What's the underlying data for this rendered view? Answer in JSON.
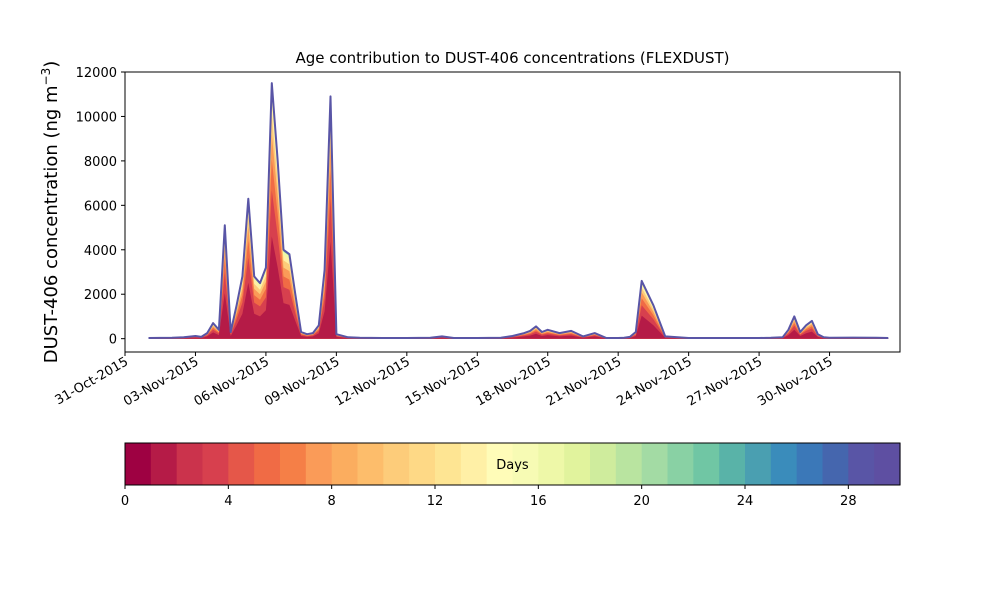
{
  "chart_data": {
    "type": "area",
    "title": "Age contribution to DUST-406 concentrations (FLEXDUST)",
    "ylabel": "DUST-406 concentration (ng m",
    "ylabel_unit_sup": "−3",
    "ylabel_close": ")",
    "xlabel": "",
    "x_range": [
      "2015-10-31",
      "2015-12-03"
    ],
    "ylim": [
      -600,
      12000
    ],
    "yticks": [
      0,
      2000,
      4000,
      6000,
      8000,
      10000,
      12000
    ],
    "xticks": [
      "31-Oct-2015",
      "03-Nov-2015",
      "06-Nov-2015",
      "09-Nov-2015",
      "12-Nov-2015",
      "15-Nov-2015",
      "18-Nov-2015",
      "21-Nov-2015",
      "24-Nov-2015",
      "27-Nov-2015",
      "30-Nov-2015"
    ],
    "grid": false,
    "series_note": "stacked contributions by age (0-30 days), colored by colorbar",
    "total": {
      "x": [
        "2015-11-01",
        "2015-11-02",
        "2015-11-02T12:00",
        "2015-11-03",
        "2015-11-03T06:00",
        "2015-11-03T12:00",
        "2015-11-03T18:00",
        "2015-11-04",
        "2015-11-04T06:00",
        "2015-11-04T12:00",
        "2015-11-04T18:00",
        "2015-11-05",
        "2015-11-05T06:00",
        "2015-11-05T12:00",
        "2015-11-05T18:00",
        "2015-11-06",
        "2015-11-06T06:00",
        "2015-11-06T12:00",
        "2015-11-06T18:00",
        "2015-11-07",
        "2015-11-07T06:00",
        "2015-11-07T12:00",
        "2015-11-07T18:00",
        "2015-11-08",
        "2015-11-08T06:00",
        "2015-11-08T12:00",
        "2015-11-08T18:00",
        "2015-11-09",
        "2015-11-09T12:00",
        "2015-11-10",
        "2015-11-11",
        "2015-11-12",
        "2015-11-13",
        "2015-11-13T12:00",
        "2015-11-14",
        "2015-11-15",
        "2015-11-16",
        "2015-11-16T12:00",
        "2015-11-17",
        "2015-11-17T06:00",
        "2015-11-17T12:00",
        "2015-11-17T18:00",
        "2015-11-18",
        "2015-11-18T12:00",
        "2015-11-19",
        "2015-11-19T12:00",
        "2015-11-20",
        "2015-11-20T12:00",
        "2015-11-21",
        "2015-11-21T06:00",
        "2015-11-21T12:00",
        "2015-11-21T18:00",
        "2015-11-22",
        "2015-11-22T12:00",
        "2015-11-23",
        "2015-11-24",
        "2015-11-25",
        "2015-11-26",
        "2015-11-27",
        "2015-11-27T12:00",
        "2015-11-28",
        "2015-11-28T06:00",
        "2015-11-28T12:00",
        "2015-11-28T18:00",
        "2015-11-29",
        "2015-11-29T06:00",
        "2015-11-29T12:00",
        "2015-11-29T18:00",
        "2015-11-30",
        "2015-12-01",
        "2015-12-02",
        "2015-12-02T12:00"
      ],
      "y": [
        30,
        40,
        60,
        120,
        80,
        250,
        700,
        400,
        5100,
        300,
        1500,
        2800,
        6300,
        2800,
        2500,
        3200,
        11500,
        8000,
        4000,
        3800,
        2000,
        300,
        200,
        250,
        600,
        3100,
        10900,
        200,
        60,
        40,
        30,
        30,
        40,
        100,
        30,
        30,
        40,
        120,
        250,
        350,
        550,
        300,
        400,
        250,
        350,
        100,
        250,
        30,
        30,
        40,
        80,
        300,
        2600,
        1500,
        100,
        30,
        30,
        30,
        30,
        40,
        60,
        400,
        1000,
        300,
        600,
        800,
        200,
        60,
        40,
        50,
        40,
        30
      ]
    }
  },
  "colorbar": {
    "label": "Days",
    "ticks": [
      "0",
      "4",
      "8",
      "12",
      "16",
      "20",
      "24",
      "28"
    ],
    "n_bins": 30,
    "max": 30,
    "colors": [
      "#9e0142",
      "#b51b47",
      "#cb334c",
      "#d7404e",
      "#e55749",
      "#f06b45",
      "#f57f47",
      "#fa9b58",
      "#fbad5f",
      "#fdbd6b",
      "#fdcc7a",
      "#fed986",
      "#fee593",
      "#fff0a6",
      "#fffcb8",
      "#f7fbb4",
      "#eef8a8",
      "#e1f39d",
      "#cfec9d",
      "#b9e4a0",
      "#a3dba4",
      "#89d1a4",
      "#70c6a4",
      "#59b3a8",
      "#4a9fb1",
      "#3a8cbb",
      "#3b78b8",
      "#4566ae",
      "#5955a6",
      "#5e4fa2"
    ]
  }
}
